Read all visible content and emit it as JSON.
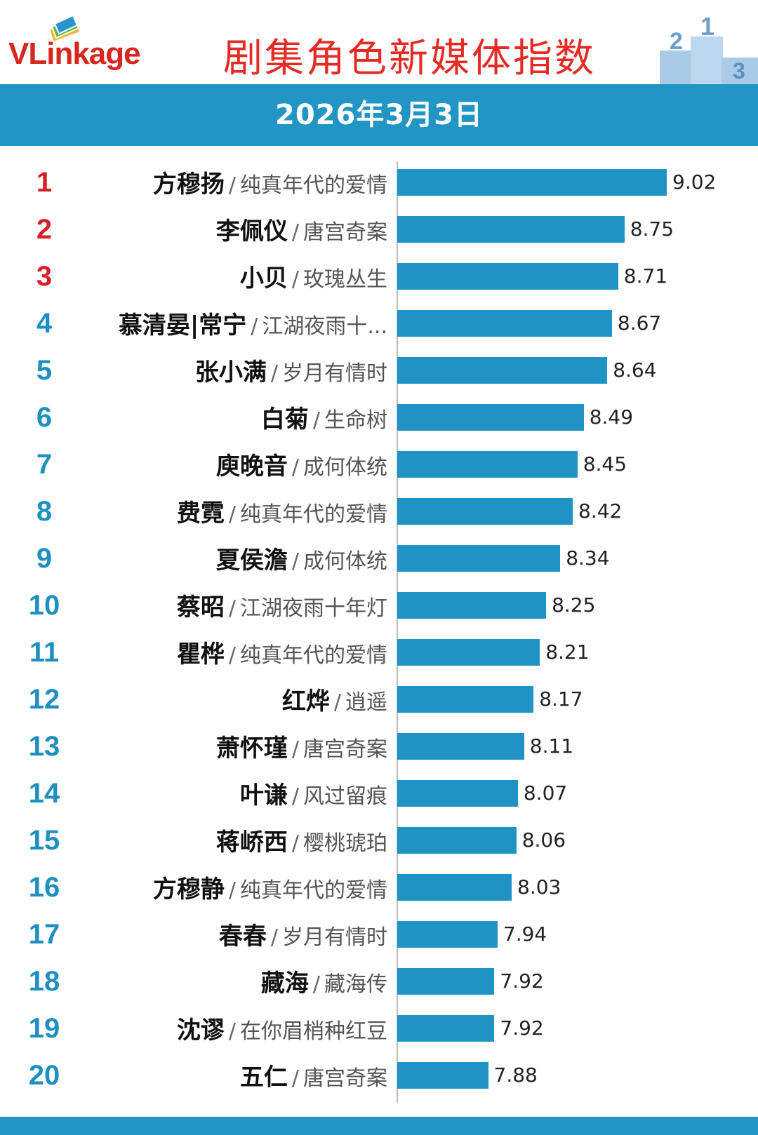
{
  "header": {
    "logo_text": "VLinkage",
    "title": "剧集角色新媒体指数",
    "date": "2026年3月3日"
  },
  "colors": {
    "accent": "#2196c4",
    "bar": "#1f93c4",
    "top_rank": "#d62027",
    "rank": "#1f8fbf",
    "title": "#e52b25"
  },
  "icons": [
    "vlinkage-logo-icon",
    "podium-icon"
  ],
  "chart_data": {
    "type": "bar",
    "orientation": "horizontal",
    "title": "剧集角色新媒体指数",
    "subtitle": "2026年3月3日",
    "xlabel": "",
    "ylabel": "",
    "grid": false,
    "xlim": [
      7.3,
      9.02
    ],
    "rows": [
      {
        "rank": "1",
        "name": "方穆扬",
        "show": "纯真年代的爱情",
        "value": 9.02,
        "value_label": "9.02"
      },
      {
        "rank": "2",
        "name": "李佩仪",
        "show": "唐宫奇案",
        "value": 8.75,
        "value_label": "8.75"
      },
      {
        "rank": "3",
        "name": "小贝",
        "show": "玫瑰丛生",
        "value": 8.71,
        "value_label": "8.71"
      },
      {
        "rank": "4",
        "name": "慕清晏|常宁",
        "show": "江湖夜雨十...",
        "value": 8.67,
        "value_label": "8.67"
      },
      {
        "rank": "5",
        "name": "张小满",
        "show": "岁月有情时",
        "value": 8.64,
        "value_label": "8.64"
      },
      {
        "rank": "6",
        "name": "白菊",
        "show": "生命树",
        "value": 8.49,
        "value_label": "8.49"
      },
      {
        "rank": "7",
        "name": "庾晚音",
        "show": "成何体统",
        "value": 8.45,
        "value_label": "8.45"
      },
      {
        "rank": "8",
        "name": "费霓",
        "show": "纯真年代的爱情",
        "value": 8.42,
        "value_label": "8.42"
      },
      {
        "rank": "9",
        "name": "夏侯澹",
        "show": "成何体统",
        "value": 8.34,
        "value_label": "8.34"
      },
      {
        "rank": "10",
        "name": "蔡昭",
        "show": "江湖夜雨十年灯",
        "value": 8.25,
        "value_label": "8.25"
      },
      {
        "rank": "11",
        "name": "瞿桦",
        "show": "纯真年代的爱情",
        "value": 8.21,
        "value_label": "8.21"
      },
      {
        "rank": "12",
        "name": "红烨",
        "show": "逍遥",
        "value": 8.17,
        "value_label": "8.17"
      },
      {
        "rank": "13",
        "name": "萧怀瑾",
        "show": "唐宫奇案",
        "value": 8.11,
        "value_label": "8.11"
      },
      {
        "rank": "14",
        "name": "叶谦",
        "show": "风过留痕",
        "value": 8.07,
        "value_label": "8.07"
      },
      {
        "rank": "15",
        "name": "蒋峤西",
        "show": "樱桃琥珀",
        "value": 8.06,
        "value_label": "8.06"
      },
      {
        "rank": "16",
        "name": "方穆静",
        "show": "纯真年代的爱情",
        "value": 8.03,
        "value_label": "8.03"
      },
      {
        "rank": "17",
        "name": "春春",
        "show": "岁月有情时",
        "value": 7.94,
        "value_label": "7.94"
      },
      {
        "rank": "18",
        "name": "藏海",
        "show": "藏海传",
        "value": 7.92,
        "value_label": "7.92"
      },
      {
        "rank": "19",
        "name": "沈谬",
        "show": "在你眉梢种红豆",
        "value": 7.92,
        "value_label": "7.92"
      },
      {
        "rank": "20",
        "name": "五仁",
        "show": "唐宫奇案",
        "value": 7.88,
        "value_label": "7.88"
      }
    ]
  }
}
